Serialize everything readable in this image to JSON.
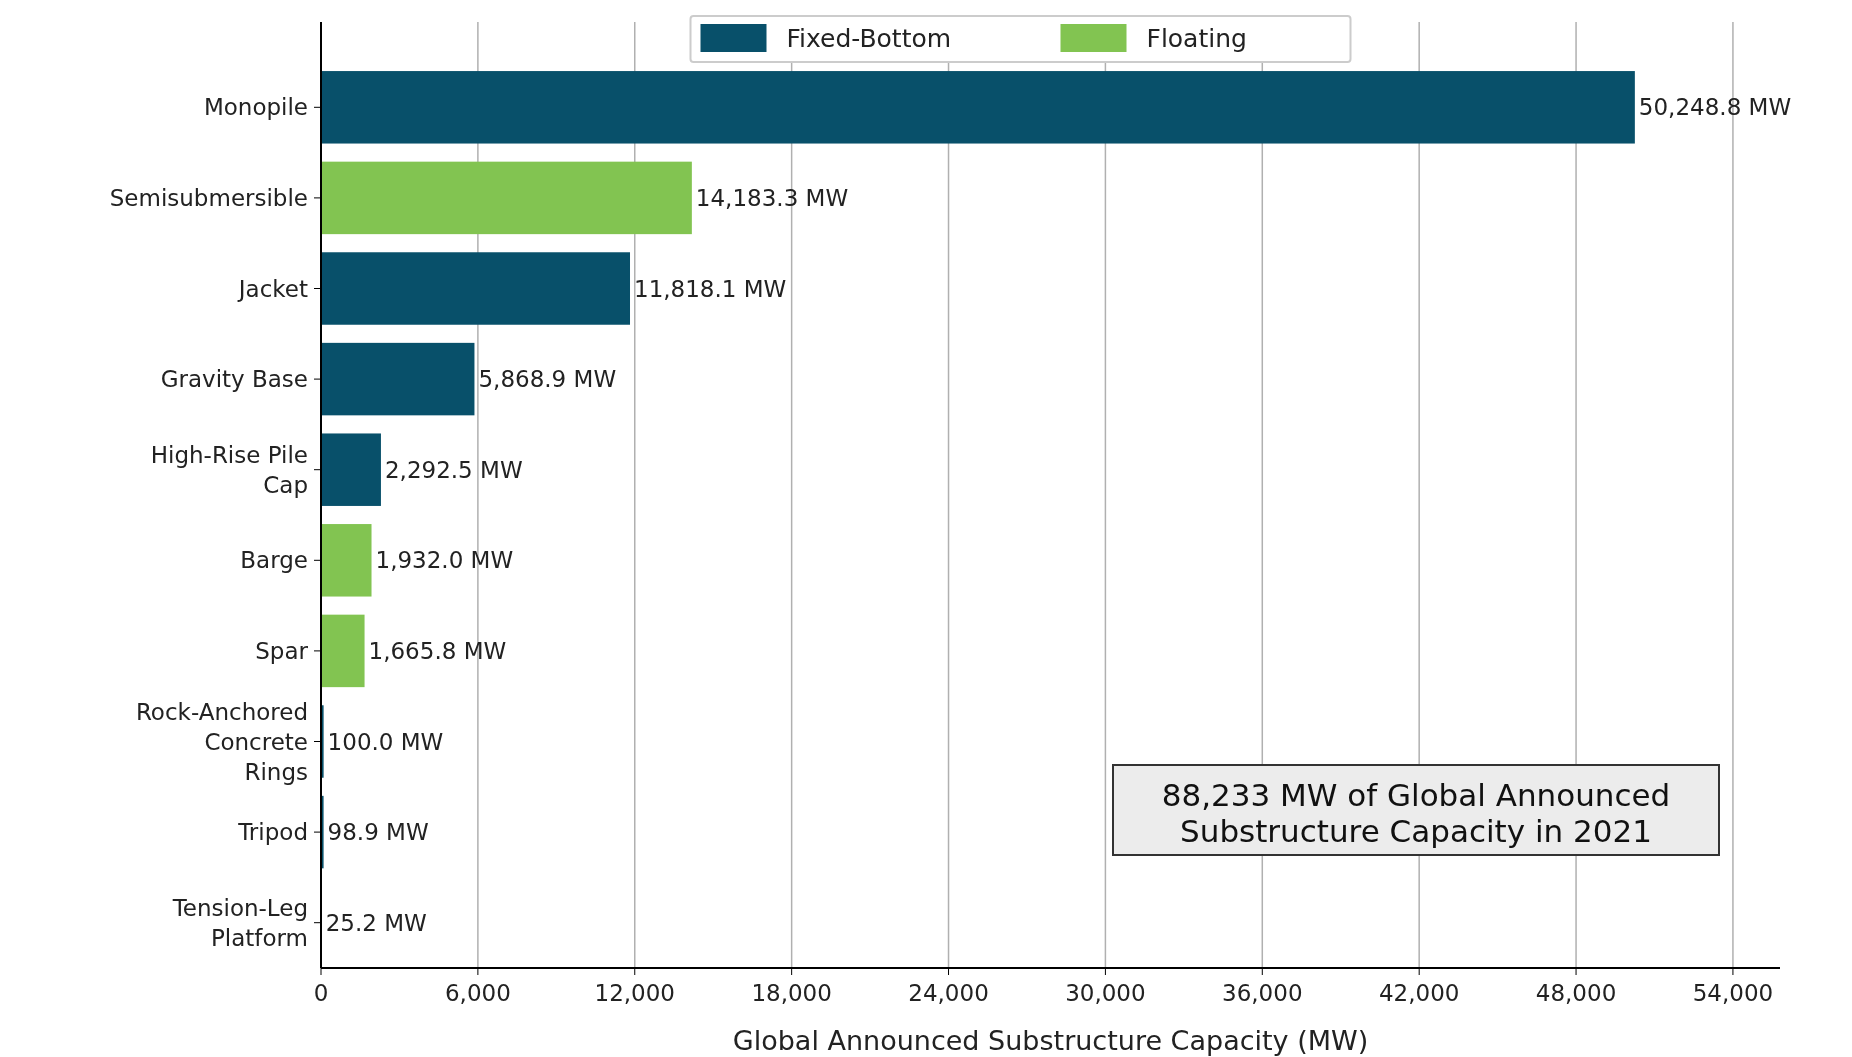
{
  "chart_data": {
    "type": "bar",
    "orientation": "horizontal",
    "xlabel": "Global Announced Substructure Capacity (MW)",
    "categories": [
      "Monopile",
      "Semisubmersible",
      "Jacket",
      "Gravity Base",
      "High-Rise Pile\nCap",
      "Barge",
      "Spar",
      "Rock-Anchored\nConcrete\nRings",
      "Tripod",
      "Tension-Leg\nPlatform"
    ],
    "series": [
      {
        "name": "Fixed-Bottom",
        "color": "#08506a",
        "values": [
          50248.8,
          null,
          11818.1,
          5868.9,
          2292.5,
          null,
          null,
          100.0,
          98.9,
          null
        ],
        "value_labels": [
          "50,248.8 MW",
          null,
          "11,818.1 MW",
          "5,868.9 MW",
          "2,292.5 MW",
          null,
          null,
          "100.0 MW",
          "98.9 MW",
          null
        ]
      },
      {
        "name": "Floating",
        "color": "#82c451",
        "values": [
          null,
          14183.3,
          null,
          null,
          null,
          1932.0,
          1665.8,
          null,
          null,
          25.2
        ],
        "value_labels": [
          null,
          "14,183.3 MW",
          null,
          null,
          null,
          "1,932.0 MW",
          "1,665.8 MW",
          null,
          null,
          "25.2 MW"
        ]
      }
    ],
    "xlim": [
      0,
      55800
    ],
    "xticks": [
      {
        "value": 0,
        "label": "0"
      },
      {
        "value": 6000,
        "label": "6,000"
      },
      {
        "value": 12000,
        "label": "12,000"
      },
      {
        "value": 18000,
        "label": "18,000"
      },
      {
        "value": 24000,
        "label": "24,000"
      },
      {
        "value": 30000,
        "label": "30,000"
      },
      {
        "value": 36000,
        "label": "36,000"
      },
      {
        "value": 42000,
        "label": "42,000"
      },
      {
        "value": 48000,
        "label": "48,000"
      },
      {
        "value": 54000,
        "label": "54,000"
      }
    ],
    "grid": "x",
    "legend": "top",
    "annotations": [
      "88,233 MW of Global Announced Substructure Capacity in 2021"
    ]
  }
}
